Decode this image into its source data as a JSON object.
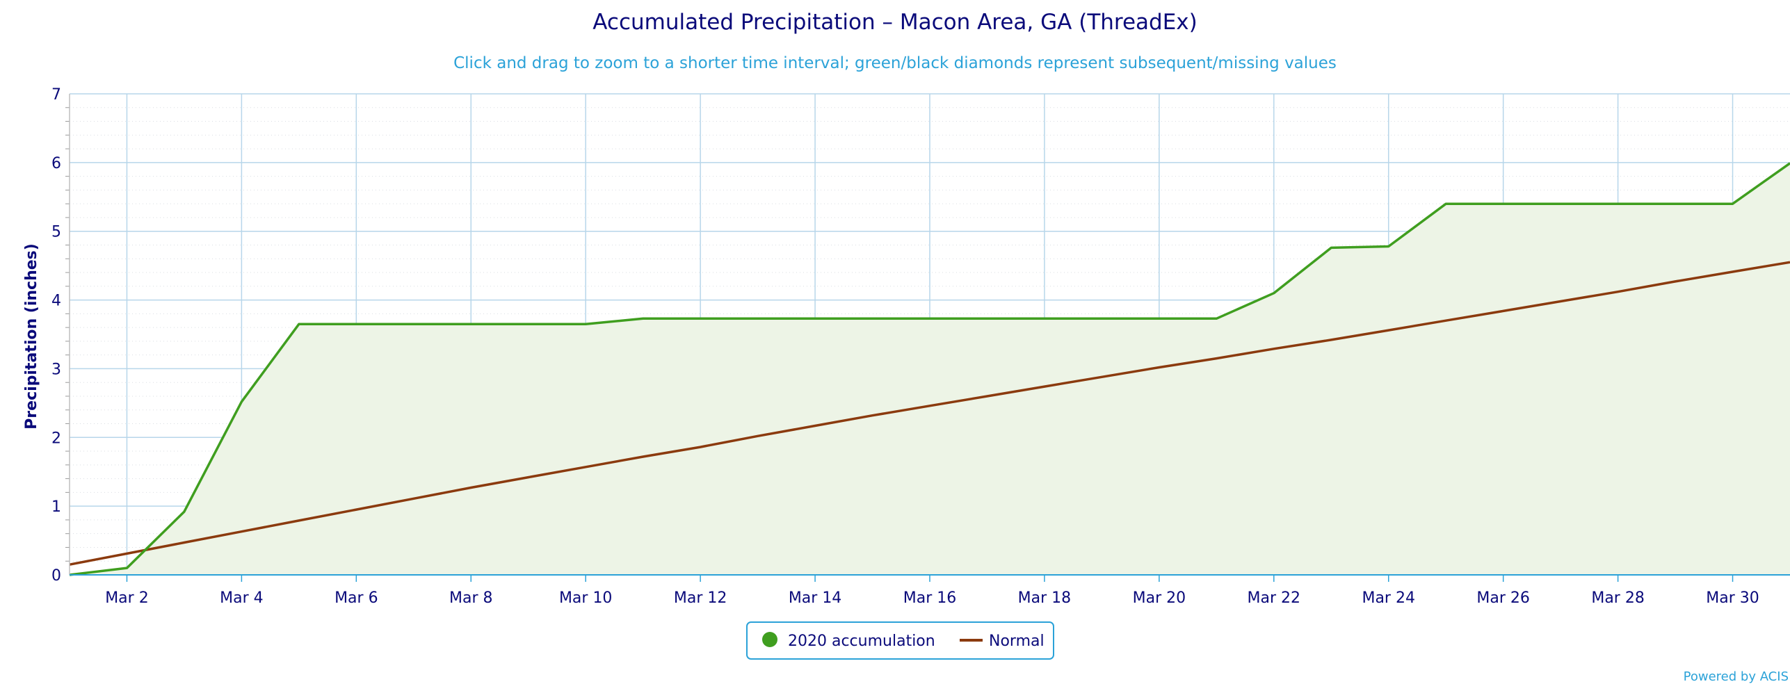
{
  "chart_data": {
    "type": "line",
    "title": "Accumulated Precipitation – Macon Area, GA (ThreadEx)",
    "subtitle": "Click and drag to zoom to a shorter time interval; green/black diamonds represent subsequent/missing values",
    "xlabel": "",
    "ylabel": "Precipitation (inches)",
    "ylim": [
      0,
      7
    ],
    "xlim_days": [
      1,
      31
    ],
    "y_ticks": [
      "0",
      "1",
      "2",
      "3",
      "4",
      "5",
      "6",
      "7"
    ],
    "x_tick_labels": [
      "Mar 2",
      "Mar 4",
      "Mar 6",
      "Mar 8",
      "Mar 10",
      "Mar 12",
      "Mar 14",
      "Mar 16",
      "Mar 18",
      "Mar 20",
      "Mar 22",
      "Mar 24",
      "Mar 26",
      "Mar 28",
      "Mar 30"
    ],
    "grid": true,
    "legend_position": "bottom-center",
    "series": [
      {
        "name": "2020 accumulation",
        "type": "area",
        "color": "#3f9e1f",
        "fill": "#edf4e6",
        "x": [
          1,
          2,
          3,
          4,
          5,
          6,
          7,
          8,
          9,
          10,
          11,
          12,
          13,
          14,
          15,
          16,
          17,
          18,
          19,
          20,
          21,
          22,
          23,
          24,
          25,
          26,
          27,
          28,
          29,
          30,
          31
        ],
        "values": [
          0.0,
          0.1,
          0.92,
          2.52,
          3.65,
          3.65,
          3.65,
          3.65,
          3.65,
          3.65,
          3.73,
          3.73,
          3.73,
          3.73,
          3.73,
          3.73,
          3.73,
          3.73,
          3.73,
          3.73,
          3.73,
          4.1,
          4.76,
          4.78,
          5.4,
          5.4,
          5.4,
          5.4,
          5.4,
          5.4,
          5.99
        ]
      },
      {
        "name": "Normal",
        "type": "line",
        "color": "#8b3a0e",
        "x": [
          1,
          2,
          3,
          4,
          5,
          6,
          7,
          8,
          9,
          10,
          11,
          12,
          13,
          14,
          15,
          16,
          17,
          18,
          19,
          20,
          21,
          22,
          23,
          24,
          25,
          26,
          27,
          28,
          29,
          30,
          31
        ],
        "values": [
          0.15,
          0.31,
          0.47,
          0.63,
          0.79,
          0.95,
          1.11,
          1.27,
          1.42,
          1.57,
          1.72,
          1.86,
          2.02,
          2.17,
          2.32,
          2.46,
          2.6,
          2.74,
          2.88,
          3.02,
          3.15,
          3.29,
          3.42,
          3.56,
          3.7,
          3.84,
          3.98,
          4.12,
          4.27,
          4.41,
          4.55
        ]
      }
    ]
  },
  "credits": "Powered by ACIS",
  "colors": {
    "title": "#0a0a7a",
    "subtitle": "#2ba2d8",
    "axis_text": "#0a0a7a",
    "grid": "#b7d6ea",
    "minor_grid": "#d9dde2",
    "axis_line": "#2ba2d8",
    "legend_border": "#2ba2d8"
  }
}
